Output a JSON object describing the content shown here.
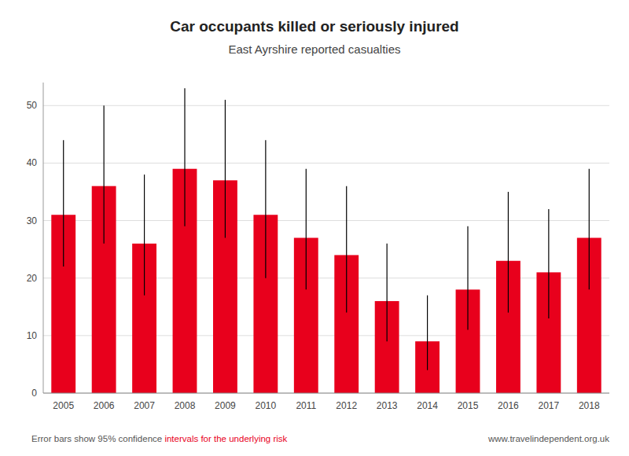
{
  "chart_data": {
    "type": "bar",
    "title": "Car occupants killed or seriously injured",
    "subtitle": "East Ayrshire reported casualties",
    "categories": [
      "2005",
      "2006",
      "2007",
      "2008",
      "2009",
      "2010",
      "2011",
      "2012",
      "2013",
      "2014",
      "2015",
      "2016",
      "2017",
      "2018"
    ],
    "values": [
      31,
      36,
      26,
      39,
      37,
      31,
      27,
      24,
      16,
      9,
      18,
      23,
      21,
      27
    ],
    "ci_upper": [
      44,
      50,
      38,
      53,
      51,
      44,
      39,
      36,
      26,
      17,
      29,
      35,
      32,
      39
    ],
    "ci_lower": [
      22,
      26,
      17,
      29,
      27,
      20,
      18,
      14,
      9,
      4,
      11,
      14,
      13,
      18
    ],
    "color": "#e8001c",
    "ylim": [
      0,
      54
    ],
    "yticks": [
      0,
      10,
      20,
      30,
      40,
      50
    ],
    "grid": true,
    "annotations": [
      {
        "text": "Error bars show 95% confidence ",
        "color": "#555555"
      },
      {
        "text": "intervals for the underlying risk",
        "color": "#e8001c"
      },
      {
        "text": "www.travelindependent.org.uk",
        "color": "#555555"
      }
    ]
  }
}
